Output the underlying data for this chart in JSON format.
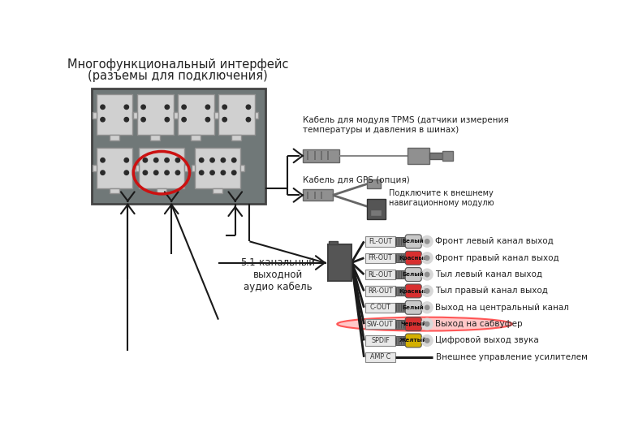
{
  "title_line1": "Многофункциональный интерфейс",
  "title_line2": "(разъемы для подключения)",
  "bg_color": "#ffffff",
  "text_color": "#222222",
  "cables": [
    {
      "label": "FL-OUT",
      "color_label": "Белый",
      "rca_color": "#c8c8c8",
      "text": "Фронт левый канал выход",
      "highlight": false
    },
    {
      "label": "FR-OUT",
      "color_label": "Красный",
      "rca_color": "#d83030",
      "text": "Фронт правый канал выход",
      "highlight": false
    },
    {
      "label": "RL-OUT",
      "color_label": "Белый",
      "rca_color": "#c8c8c8",
      "text": "Тыл левый канал выход",
      "highlight": false
    },
    {
      "label": "RR-OUT",
      "color_label": "Красный",
      "rca_color": "#d83030",
      "text": "Тыл правый канал выход",
      "highlight": false
    },
    {
      "label": "C-OUT",
      "color_label": "Белый",
      "rca_color": "#c8c8c8",
      "text": "Выход на центральный канал",
      "highlight": false
    },
    {
      "label": "SW-OUT",
      "color_label": "Черный",
      "rca_color": "#d83030",
      "text": "Выход на сабвуфер",
      "highlight": true
    },
    {
      "label": "SPDIF",
      "color_label": "Желтый",
      "rca_color": "#d4b000",
      "text": "Цифровой выход звука",
      "highlight": false
    },
    {
      "label": "AMP C",
      "color_label": "",
      "rca_color": null,
      "text": "Внешнее управление усилителем",
      "highlight": false
    }
  ],
  "tpms_label": "Кабель для модуля TPMS (датчики измерения\nтемпературы и давления в шинах)",
  "gps_label": "Кабель для GPS (опция)",
  "gps_sublabel": "Подключите к внешнему\nнавигационному модулю",
  "audio_label": "5.1-канальный\nвыходной\nаудио кабель",
  "panel_fc": "#707878",
  "panel_ec": "#444444",
  "conn_fc": "#d0d0d0",
  "conn_ec": "#909090"
}
